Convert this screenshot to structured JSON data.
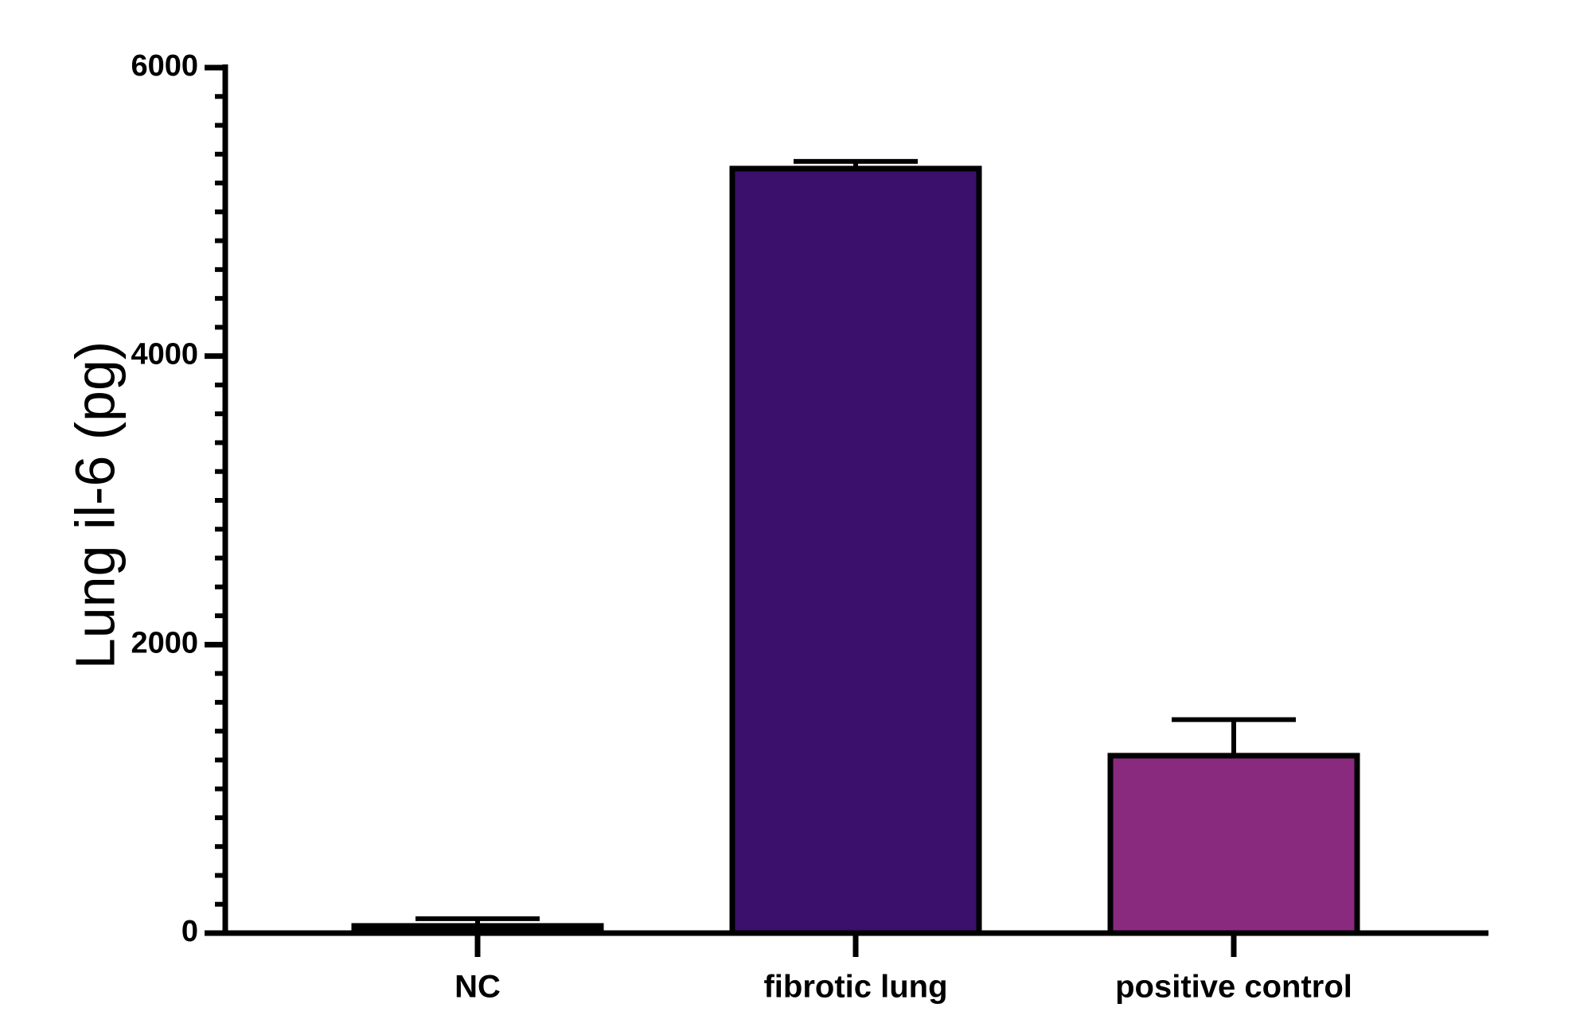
{
  "chart_data": {
    "type": "bar",
    "title": "",
    "xlabel": "",
    "ylabel": "Lung il-6 (pg)",
    "ylim": [
      0,
      6000
    ],
    "y_major_ticks": [
      0,
      2000,
      4000,
      6000
    ],
    "y_tick_labels": [
      "0",
      "2000",
      "4000",
      "6000"
    ],
    "y_minor_step": 200,
    "grid": false,
    "categories": [
      "NC",
      "fibrotic lung",
      "positive control"
    ],
    "values": [
      50,
      5300,
      1230
    ],
    "error_upper": [
      100,
      5350,
      1480
    ],
    "colors": [
      "#000000",
      "#3b0f6c",
      "#8a2a7f"
    ],
    "axis_color": "#000000"
  }
}
